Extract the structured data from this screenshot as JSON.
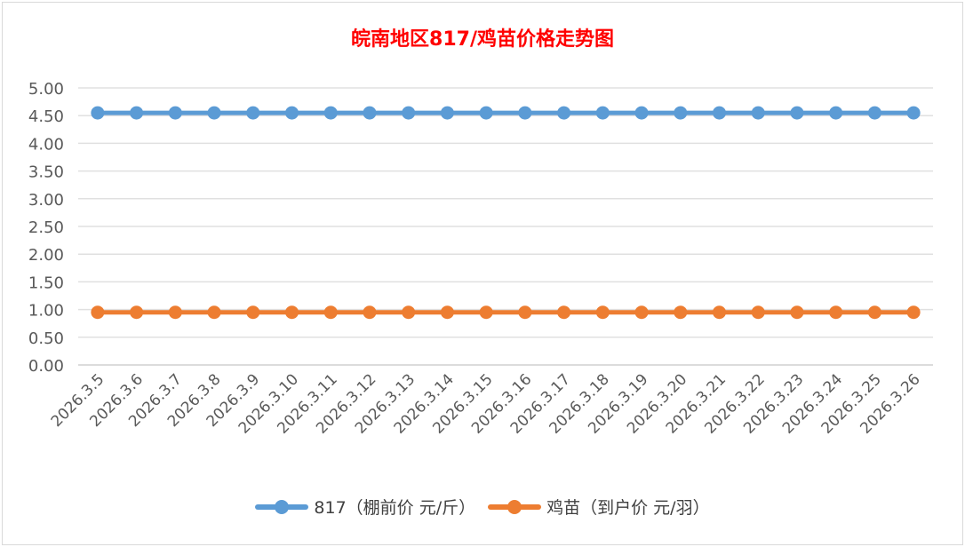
{
  "chart_data": {
    "type": "line",
    "title": "皖南地区817/鸡苗价格走势图",
    "xlabel": "",
    "ylabel": "",
    "ylim": [
      0,
      5
    ],
    "yticks": [
      "0.00",
      "0.50",
      "1.00",
      "1.50",
      "2.00",
      "2.50",
      "3.00",
      "3.50",
      "4.00",
      "4.50",
      "5.00"
    ],
    "grid": true,
    "legend": "bottom",
    "categories": [
      "2026.3.5",
      "2026.3.6",
      "2026.3.7",
      "2026.3.8",
      "2026.3.9",
      "2026.3.10",
      "2026.3.11",
      "2026.3.12",
      "2026.3.13",
      "2026.3.14",
      "2026.3.15",
      "2026.3.16",
      "2026.3.17",
      "2026.3.18",
      "2026.3.19",
      "2026.3.20",
      "2026.3.21",
      "2026.3.22",
      "2026.3.23",
      "2026.3.24",
      "2026.3.25",
      "2026.3.26"
    ],
    "series": [
      {
        "name": "817（棚前价 元/斤）",
        "color": "#5b9bd5",
        "values": [
          4.55,
          4.55,
          4.55,
          4.55,
          4.55,
          4.55,
          4.55,
          4.55,
          4.55,
          4.55,
          4.55,
          4.55,
          4.55,
          4.55,
          4.55,
          4.55,
          4.55,
          4.55,
          4.55,
          4.55,
          4.55,
          4.55
        ]
      },
      {
        "name": "鸡苗（到户价 元/羽）",
        "color": "#ed7d31",
        "values": [
          0.95,
          0.95,
          0.95,
          0.95,
          0.95,
          0.95,
          0.95,
          0.95,
          0.95,
          0.95,
          0.95,
          0.95,
          0.95,
          0.95,
          0.95,
          0.95,
          0.95,
          0.95,
          0.95,
          0.95,
          0.95,
          0.95
        ]
      }
    ]
  }
}
